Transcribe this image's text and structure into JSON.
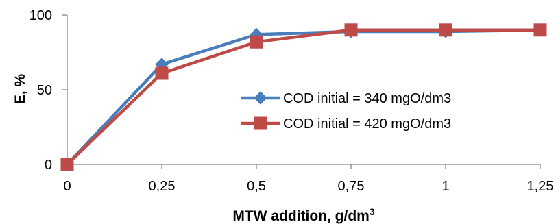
{
  "chart_data": {
    "type": "line",
    "title": "",
    "xlabel": "MTW addition, g/dm",
    "xlabel_superscript": "3",
    "ylabel": "E, %",
    "categories": [
      "0",
      "0,25",
      "0,5",
      "0,75",
      "1",
      "1,25"
    ],
    "x": [
      0,
      0.25,
      0.5,
      0.75,
      1,
      1.25
    ],
    "ylim": [
      0,
      100
    ],
    "yticks": [
      "0",
      "50",
      "100"
    ],
    "grid": false,
    "legend_position": "center-right",
    "series": [
      {
        "name": "COD initial = 340 mgO/dm3",
        "values": [
          0,
          67,
          87,
          89,
          89,
          90
        ],
        "color": "#4a7ebb",
        "marker": "diamond"
      },
      {
        "name": "COD initial = 420 mgO/dm3",
        "values": [
          0,
          61,
          82,
          90,
          90,
          90
        ],
        "color": "#be4b48",
        "marker": "square"
      }
    ]
  }
}
